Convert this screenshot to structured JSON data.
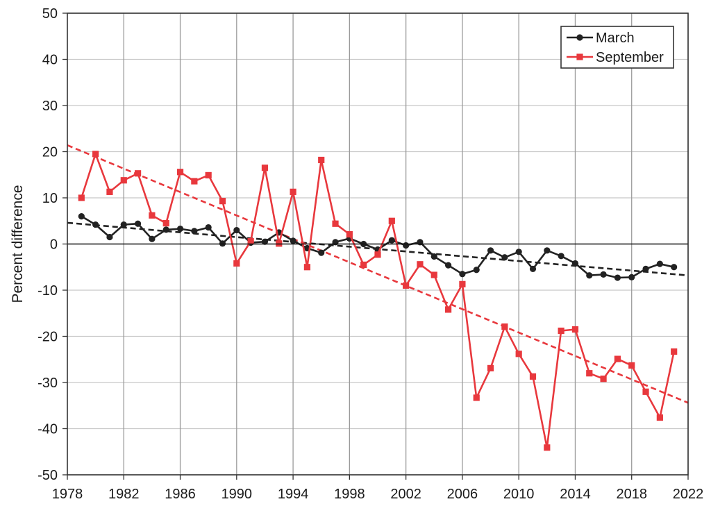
{
  "chart_data": {
    "type": "line",
    "title": "",
    "xlabel": "",
    "ylabel": "Percent difference",
    "xlim": [
      1978,
      2022
    ],
    "ylim": [
      -50,
      50
    ],
    "x_ticks": [
      1978,
      1982,
      1986,
      1990,
      1994,
      1998,
      2002,
      2006,
      2010,
      2014,
      2018,
      2022
    ],
    "y_ticks": [
      -50,
      -40,
      -30,
      -20,
      -10,
      0,
      10,
      20,
      30,
      40,
      50
    ],
    "grid": true,
    "legend_position": "top-right",
    "series": [
      {
        "name": "March",
        "color": "#222222",
        "marker": "circle",
        "x": [
          1979,
          1980,
          1981,
          1982,
          1983,
          1984,
          1985,
          1986,
          1987,
          1988,
          1989,
          1990,
          1991,
          1992,
          1993,
          1994,
          1995,
          1996,
          1997,
          1998,
          1999,
          2000,
          2001,
          2002,
          2003,
          2004,
          2005,
          2006,
          2007,
          2008,
          2009,
          2010,
          2011,
          2012,
          2013,
          2014,
          2015,
          2016,
          2017,
          2018,
          2019,
          2020,
          2021
        ],
        "values": [
          6.0,
          4.2,
          1.5,
          4.2,
          4.4,
          1.1,
          3.1,
          3.3,
          2.8,
          3.6,
          0.1,
          3.0,
          0.3,
          0.5,
          2.5,
          0.7,
          -0.9,
          -1.9,
          0.4,
          1.2,
          0.0,
          -1.2,
          0.8,
          -0.3,
          0.4,
          -2.7,
          -4.6,
          -6.5,
          -5.6,
          -1.4,
          -2.9,
          -1.7,
          -5.4,
          -1.4,
          -2.6,
          -4.2,
          -6.8,
          -6.6,
          -7.3,
          -7.2,
          -5.4,
          -4.3,
          -5.0
        ]
      },
      {
        "name": "September",
        "color": "#e8383d",
        "marker": "square",
        "x": [
          1979,
          1980,
          1981,
          1982,
          1983,
          1984,
          1985,
          1986,
          1987,
          1988,
          1989,
          1990,
          1991,
          1992,
          1993,
          1994,
          1995,
          1996,
          1997,
          1998,
          1999,
          2000,
          2001,
          2002,
          2003,
          2004,
          2005,
          2006,
          2007,
          2008,
          2009,
          2010,
          2011,
          2012,
          2013,
          2014,
          2015,
          2016,
          2017,
          2018,
          2019,
          2020,
          2021
        ],
        "values": [
          10.0,
          19.5,
          11.3,
          13.8,
          15.3,
          6.2,
          4.5,
          15.6,
          13.6,
          14.9,
          9.3,
          -4.2,
          0.6,
          16.5,
          0.1,
          11.3,
          -5.0,
          18.2,
          4.4,
          2.1,
          -4.5,
          -2.3,
          5.0,
          -9.0,
          -4.4,
          -6.7,
          -14.2,
          -8.7,
          -33.3,
          -26.9,
          -17.9,
          -23.8,
          -28.7,
          -44.1,
          -18.8,
          -18.5,
          -28.0,
          -29.2,
          -24.9,
          -26.3,
          -32.0,
          -37.6,
          -23.3
        ]
      }
    ],
    "trendlines": [
      {
        "series": "March",
        "style": "dashed",
        "color": "#222222",
        "x": [
          1978,
          2022
        ],
        "y": [
          4.6,
          -6.8
        ]
      },
      {
        "series": "September",
        "style": "dashed",
        "color": "#e8383d",
        "x": [
          1978,
          2022
        ],
        "y": [
          21.4,
          -34.4
        ]
      }
    ]
  }
}
